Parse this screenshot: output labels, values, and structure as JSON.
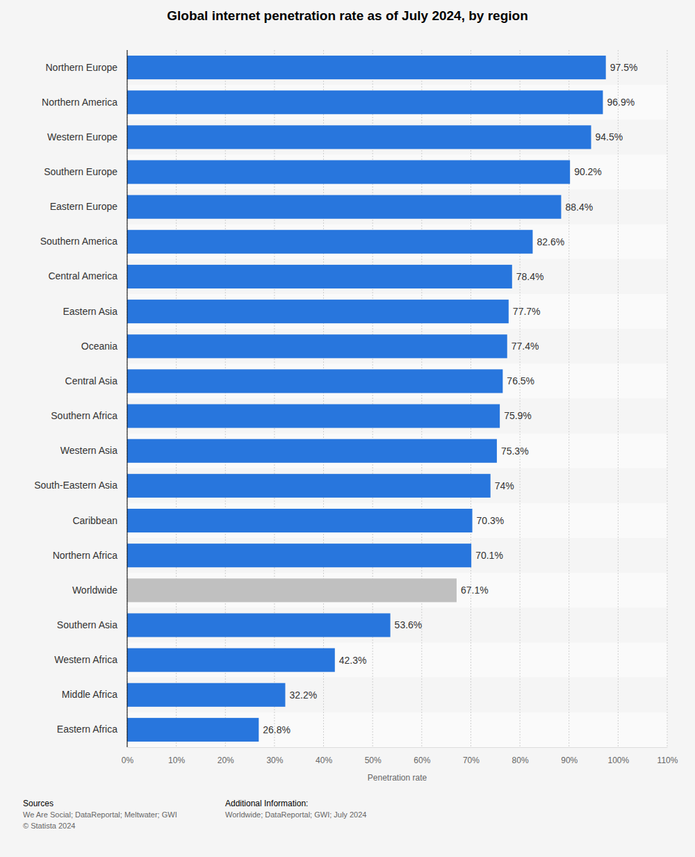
{
  "chart_data": {
    "type": "bar",
    "orientation": "horizontal",
    "title": "Global internet penetration rate as of July 2024, by region",
    "x_label": "Penetration rate",
    "categories": [
      "Northern Europe",
      "Northern America",
      "Western Europe",
      "Southern Europe",
      "Eastern Europe",
      "Southern America",
      "Central America",
      "Eastern Asia",
      "Oceania",
      "Central Asia",
      "Southern Africa",
      "Western Asia",
      "South-Eastern Asia",
      "Caribbean",
      "Northern Africa",
      "Worldwide",
      "Southern Asia",
      "Western Africa",
      "Middle Africa",
      "Eastern Africa"
    ],
    "values": [
      97.5,
      96.9,
      94.5,
      90.2,
      88.4,
      82.6,
      78.4,
      77.7,
      77.4,
      76.5,
      75.9,
      75.3,
      74,
      70.3,
      70.1,
      67.1,
      53.6,
      42.3,
      32.2,
      26.8
    ],
    "value_labels": [
      "97.5%",
      "96.9%",
      "94.5%",
      "90.2%",
      "88.4%",
      "82.6%",
      "78.4%",
      "77.7%",
      "77.4%",
      "76.5%",
      "75.9%",
      "75.3%",
      "74%",
      "70.3%",
      "70.1%",
      "67.1%",
      "53.6%",
      "42.3%",
      "32.2%",
      "26.8%"
    ],
    "colors": [
      "#2876dd",
      "#2876dd",
      "#2876dd",
      "#2876dd",
      "#2876dd",
      "#2876dd",
      "#2876dd",
      "#2876dd",
      "#2876dd",
      "#2876dd",
      "#2876dd",
      "#2876dd",
      "#2876dd",
      "#2876dd",
      "#2876dd",
      "#c0c0c0",
      "#2876dd",
      "#2876dd",
      "#2876dd",
      "#2876dd"
    ],
    "xlim": [
      0,
      110
    ],
    "xticks": [
      {
        "value": 0,
        "label": "0%"
      },
      {
        "value": 10,
        "label": "10%"
      },
      {
        "value": 20,
        "label": "20%"
      },
      {
        "value": 30,
        "label": "30%"
      },
      {
        "value": 40,
        "label": "40%"
      },
      {
        "value": 50,
        "label": "50%"
      },
      {
        "value": 60,
        "label": "60%"
      },
      {
        "value": 70,
        "label": "70%"
      },
      {
        "value": 80,
        "label": "80%"
      },
      {
        "value": 90,
        "label": "90%"
      },
      {
        "value": 100,
        "label": "100%"
      },
      {
        "value": 110,
        "label": "110%"
      }
    ],
    "grid": true,
    "data_labels": true,
    "footer": {
      "sources_title": "Sources",
      "sources": "We Are Social; DataReportal; Meltwater; GWI",
      "copyright": "© Statista 2024",
      "info_title": "Additional Information:",
      "info": "Worldwide; DataReportal; GWI; July 2024"
    }
  }
}
